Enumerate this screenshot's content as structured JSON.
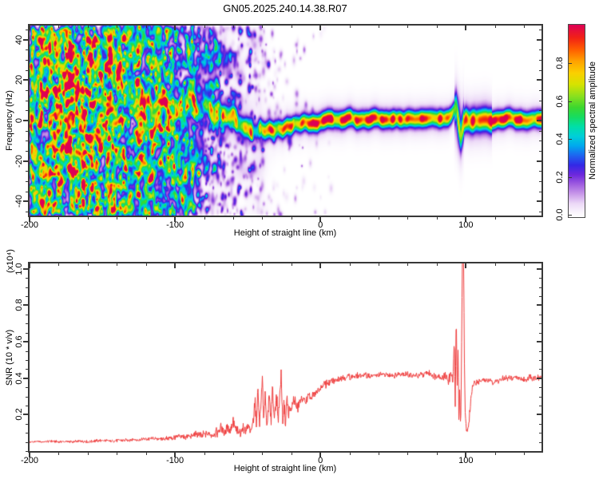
{
  "title": "GN05.2025.240.14.38.R07",
  "chart_data": [
    {
      "type": "heatmap",
      "title": "GN05.2025.240.14.38.R07",
      "xlabel": "Height of straight line (km)",
      "ylabel": "Frequency (Hz)",
      "xlim": [
        -200,
        152
      ],
      "ylim": [
        -47,
        47
      ],
      "xticks": [
        -200,
        -100,
        0,
        100
      ],
      "xtick_labels": [
        "-200",
        "-100",
        "0",
        "100"
      ],
      "yticks": [
        40,
        20,
        0,
        -20,
        -40
      ],
      "ytick_labels": [
        "40",
        "20",
        "0",
        "-20",
        "-40"
      ],
      "minor_x_step": 20,
      "minor_y_step": 5,
      "grid": false,
      "colorbar": {
        "label": "Normalized spectral amplitude",
        "tick_values": [
          0.0,
          0.2,
          0.4,
          0.6,
          0.8
        ],
        "tick_labels": [
          "0.0",
          "0.2",
          "0.4",
          "0.6",
          "0.8"
        ],
        "range": [
          0,
          1
        ]
      },
      "colormap": [
        [
          0.0,
          "#ffffff"
        ],
        [
          0.03,
          "#f8f2fc"
        ],
        [
          0.07,
          "#ecd9f7"
        ],
        [
          0.12,
          "#c99ae9"
        ],
        [
          0.17,
          "#a05ee0"
        ],
        [
          0.22,
          "#6e28dc"
        ],
        [
          0.27,
          "#3328e6"
        ],
        [
          0.32,
          "#1e64f0"
        ],
        [
          0.37,
          "#00a8ee"
        ],
        [
          0.42,
          "#00cfd8"
        ],
        [
          0.47,
          "#00dfa8"
        ],
        [
          0.52,
          "#16dc60"
        ],
        [
          0.57,
          "#3cd72e"
        ],
        [
          0.63,
          "#8ce01e"
        ],
        [
          0.69,
          "#d6e300"
        ],
        [
          0.75,
          "#fbcf00"
        ],
        [
          0.81,
          "#ffa200"
        ],
        [
          0.87,
          "#ff5f00"
        ],
        [
          0.93,
          "#f22314"
        ],
        [
          1.0,
          "#dd0055"
        ]
      ],
      "noise": {
        "x_range": [
          -200,
          8
        ],
        "full_until": -125,
        "fade_to": -30,
        "count": 9000,
        "wash_count": 300,
        "seed": 7
      },
      "spike": {
        "x": 95,
        "center": -1,
        "sigma": 9.5,
        "amplitude": 0.17
      },
      "ridge": [
        [
          -135,
          11,
          0.18
        ],
        [
          -131,
          9,
          0.2
        ],
        [
          -127,
          11,
          0.22
        ],
        [
          -123,
          8,
          0.24
        ],
        [
          -119,
          10,
          0.26
        ],
        [
          -115,
          8,
          0.28
        ],
        [
          -111,
          9.5,
          0.3
        ],
        [
          -107,
          7,
          0.33
        ],
        [
          -103,
          8.5,
          0.36
        ],
        [
          -99,
          6.5,
          0.38
        ],
        [
          -95,
          8,
          0.4
        ],
        [
          -91,
          6,
          0.42
        ],
        [
          -87,
          7,
          0.44
        ],
        [
          -83,
          5,
          0.46
        ],
        [
          -79,
          6.5,
          0.48
        ],
        [
          -75,
          4.5,
          0.5
        ],
        [
          -71,
          5.5,
          0.52
        ],
        [
          -67,
          3.5,
          0.54
        ],
        [
          -63,
          2,
          0.56
        ],
        [
          -59,
          0.5,
          0.58
        ],
        [
          -55,
          -1.5,
          0.58
        ],
        [
          -51,
          -3,
          0.6
        ],
        [
          -47,
          -5,
          0.62
        ],
        [
          -44,
          -6,
          0.64
        ],
        [
          -41,
          -4.5,
          0.66
        ],
        [
          -38,
          -5.5,
          0.68
        ],
        [
          -35,
          -4,
          0.7
        ],
        [
          -32,
          -5,
          0.72
        ],
        [
          -29,
          -3,
          0.75
        ],
        [
          -26,
          -4,
          0.78
        ],
        [
          -23,
          -2,
          0.8
        ],
        [
          -20,
          -2.5,
          0.82
        ],
        [
          -17,
          -1,
          0.84
        ],
        [
          -14,
          -1.8,
          0.86
        ],
        [
          -11,
          -0.8,
          0.88
        ],
        [
          -8,
          -1.5,
          0.88
        ],
        [
          -5,
          -0.5,
          0.9
        ],
        [
          -2,
          -1,
          0.9
        ],
        [
          1,
          0,
          0.92
        ],
        [
          5,
          0.8,
          0.9
        ],
        [
          9,
          0.2,
          0.92
        ],
        [
          13,
          1,
          0.93
        ],
        [
          17,
          0.5,
          0.9
        ],
        [
          21,
          1,
          0.93
        ],
        [
          25,
          0.6,
          0.92
        ],
        [
          29,
          1.1,
          0.9
        ],
        [
          33,
          0.5,
          0.93
        ],
        [
          37,
          1,
          0.92
        ],
        [
          41,
          0.6,
          0.9
        ],
        [
          45,
          1.1,
          0.93
        ],
        [
          49,
          0.5,
          0.92
        ],
        [
          53,
          1,
          0.9
        ],
        [
          57,
          0.7,
          0.93
        ],
        [
          61,
          1.1,
          0.92
        ],
        [
          65,
          0.5,
          0.9
        ],
        [
          69,
          1,
          0.93
        ],
        [
          73,
          0.7,
          0.92
        ],
        [
          77,
          1.1,
          0.9
        ],
        [
          81,
          0.6,
          0.92
        ],
        [
          85,
          1,
          0.9
        ],
        [
          88,
          1.5,
          0.85
        ],
        [
          90,
          3,
          0.75
        ],
        [
          92,
          6,
          0.55
        ],
        [
          93.5,
          7.5,
          0.5
        ],
        [
          94.5,
          2,
          0.6
        ],
        [
          95.5,
          -4,
          0.6
        ],
        [
          96.5,
          -8.5,
          0.55
        ],
        [
          97.5,
          -5,
          0.65
        ],
        [
          98.5,
          -1,
          0.75
        ],
        [
          100,
          0.5,
          0.82
        ],
        [
          103,
          0,
          0.88
        ],
        [
          106,
          0.8,
          0.9
        ],
        [
          110,
          0.3,
          0.9
        ],
        [
          114,
          0.9,
          0.91
        ],
        [
          118,
          0.4,
          0.9
        ],
        [
          122,
          1,
          0.92
        ],
        [
          126,
          0.5,
          0.9
        ],
        [
          130,
          1,
          0.92
        ],
        [
          134,
          0.6,
          0.9
        ],
        [
          138,
          1,
          0.93
        ],
        [
          142,
          0.5,
          0.92
        ],
        [
          146,
          1,
          0.9
        ],
        [
          150,
          0.8,
          0.92
        ],
        [
          152,
          0.8,
          0.9
        ]
      ]
    },
    {
      "type": "line",
      "xlabel": "Height of straight line (km)",
      "ylabel": "SNR (10 * v/v)",
      "y_scale_label": "(x10⁴)",
      "color": "#ee3b3b",
      "xlim": [
        -200,
        152
      ],
      "ylim": [
        0,
        1.03
      ],
      "xticks": [
        -200,
        -100,
        0,
        100
      ],
      "xtick_labels": [
        "-200",
        "-100",
        "0",
        "100"
      ],
      "yticks": [
        0.2,
        0.4,
        0.6,
        0.8,
        1.0
      ],
      "ytick_labels": [
        "0.2",
        "0.4",
        "0.6",
        "0.8",
        "1.0"
      ],
      "minor_x_step": 20,
      "minor_y_step": 0.05,
      "grid": false,
      "points": [
        [
          -200,
          0.048,
          0.008
        ],
        [
          -195,
          0.052,
          0.008
        ],
        [
          -190,
          0.05,
          0.009
        ],
        [
          -185,
          0.055,
          0.009
        ],
        [
          -180,
          0.05,
          0.008
        ],
        [
          -175,
          0.053,
          0.008
        ],
        [
          -170,
          0.05,
          0.009
        ],
        [
          -165,
          0.055,
          0.01
        ],
        [
          -160,
          0.052,
          0.009
        ],
        [
          -155,
          0.055,
          0.01
        ],
        [
          -150,
          0.058,
          0.01
        ],
        [
          -145,
          0.054,
          0.01
        ],
        [
          -140,
          0.056,
          0.011
        ],
        [
          -135,
          0.06,
          0.011
        ],
        [
          -130,
          0.062,
          0.012
        ],
        [
          -125,
          0.06,
          0.012
        ],
        [
          -120,
          0.065,
          0.013
        ],
        [
          -115,
          0.068,
          0.014
        ],
        [
          -110,
          0.066,
          0.014
        ],
        [
          -105,
          0.07,
          0.016
        ],
        [
          -100,
          0.075,
          0.018
        ],
        [
          -96,
          0.08,
          0.018
        ],
        [
          -92,
          0.078,
          0.02
        ],
        [
          -88,
          0.085,
          0.022
        ],
        [
          -84,
          0.09,
          0.026
        ],
        [
          -80,
          0.086,
          0.026
        ],
        [
          -77,
          0.095,
          0.028
        ],
        [
          -74,
          0.09,
          0.028
        ],
        [
          -71,
          0.105,
          0.032
        ],
        [
          -68,
          0.125,
          0.036
        ],
        [
          -66,
          0.095,
          0.03
        ],
        [
          -64,
          0.14,
          0.04
        ],
        [
          -62,
          0.105,
          0.034
        ],
        [
          -60,
          0.15,
          0.045
        ],
        [
          -58,
          0.115,
          0.038
        ],
        [
          -56,
          0.098,
          0.034
        ],
        [
          -54,
          0.125,
          0.038
        ],
        [
          -52,
          0.108,
          0.036
        ],
        [
          -50,
          0.135,
          0.04
        ],
        [
          -48,
          0.115,
          0.038
        ],
        [
          -46,
          0.155,
          0.045
        ],
        [
          -45,
          0.29,
          0.05
        ],
        [
          -44,
          0.135,
          0.045
        ],
        [
          -43,
          0.33,
          0.05
        ],
        [
          -42,
          0.15,
          0.045
        ],
        [
          -41,
          0.24,
          0.05
        ],
        [
          -40,
          0.42,
          0.045
        ],
        [
          -39,
          0.155,
          0.045
        ],
        [
          -38,
          0.34,
          0.05
        ],
        [
          -37,
          0.14,
          0.045
        ],
        [
          -36,
          0.24,
          0.05
        ],
        [
          -35,
          0.3,
          0.05
        ],
        [
          -34,
          0.155,
          0.045
        ],
        [
          -33,
          0.37,
          0.05
        ],
        [
          -32,
          0.175,
          0.045
        ],
        [
          -31,
          0.255,
          0.05
        ],
        [
          -30,
          0.285,
          0.05
        ],
        [
          -29,
          0.165,
          0.045
        ],
        [
          -28,
          0.32,
          0.05
        ],
        [
          -27,
          0.42,
          0.045
        ],
        [
          -26,
          0.175,
          0.045
        ],
        [
          -25,
          0.26,
          0.05
        ],
        [
          -24,
          0.155,
          0.045
        ],
        [
          -23,
          0.3,
          0.05
        ],
        [
          -22,
          0.195,
          0.045
        ],
        [
          -21,
          0.25,
          0.045
        ],
        [
          -20,
          0.215,
          0.042
        ],
        [
          -18,
          0.29,
          0.042
        ],
        [
          -16,
          0.235,
          0.04
        ],
        [
          -14,
          0.265,
          0.04
        ],
        [
          -12,
          0.29,
          0.036
        ],
        [
          -10,
          0.275,
          0.036
        ],
        [
          -8,
          0.3,
          0.034
        ],
        [
          -6,
          0.29,
          0.032
        ],
        [
          -4,
          0.31,
          0.03
        ],
        [
          -2,
          0.33,
          0.028
        ],
        [
          0,
          0.345,
          0.026
        ],
        [
          3,
          0.365,
          0.026
        ],
        [
          6,
          0.375,
          0.024
        ],
        [
          10,
          0.39,
          0.023
        ],
        [
          14,
          0.4,
          0.022
        ],
        [
          18,
          0.405,
          0.022
        ],
        [
          22,
          0.41,
          0.02
        ],
        [
          26,
          0.415,
          0.02
        ],
        [
          30,
          0.415,
          0.02
        ],
        [
          35,
          0.41,
          0.02
        ],
        [
          40,
          0.415,
          0.02
        ],
        [
          45,
          0.42,
          0.021
        ],
        [
          50,
          0.415,
          0.02
        ],
        [
          55,
          0.425,
          0.021
        ],
        [
          60,
          0.42,
          0.02
        ],
        [
          65,
          0.41,
          0.02
        ],
        [
          70,
          0.42,
          0.021
        ],
        [
          75,
          0.43,
          0.023
        ],
        [
          78,
          0.41,
          0.023
        ],
        [
          81,
          0.415,
          0.021
        ],
        [
          84,
          0.4,
          0.021
        ],
        [
          86,
          0.415,
          0.026
        ],
        [
          88,
          0.385,
          0.028
        ],
        [
          90,
          0.43,
          0.035
        ],
        [
          91,
          0.36,
          0.04
        ],
        [
          92,
          0.6,
          0.04
        ],
        [
          92.7,
          0.26,
          0.038
        ],
        [
          93.4,
          0.77,
          0.035
        ],
        [
          94,
          0.31,
          0.035
        ],
        [
          94.6,
          0.58,
          0.035
        ],
        [
          95.2,
          0.16,
          0.03
        ],
        [
          95.8,
          0.34,
          0.028
        ],
        [
          96.4,
          0.12,
          0.022
        ],
        [
          97,
          0.5,
          0.026
        ],
        [
          97.6,
          1.06,
          0.02
        ],
        [
          98.4,
          1.06,
          0.02
        ],
        [
          99,
          0.48,
          0.032
        ],
        [
          99.6,
          0.21,
          0.028
        ],
        [
          100.2,
          0.13,
          0.024
        ],
        [
          101,
          0.105,
          0.02
        ],
        [
          102,
          0.15,
          0.026
        ],
        [
          103,
          0.24,
          0.028
        ],
        [
          104,
          0.32,
          0.026
        ],
        [
          105,
          0.365,
          0.024
        ],
        [
          108,
          0.38,
          0.022
        ],
        [
          112,
          0.39,
          0.02
        ],
        [
          116,
          0.385,
          0.02
        ],
        [
          120,
          0.38,
          0.02
        ],
        [
          124,
          0.39,
          0.021
        ],
        [
          128,
          0.4,
          0.021
        ],
        [
          132,
          0.405,
          0.02
        ],
        [
          136,
          0.4,
          0.02
        ],
        [
          140,
          0.39,
          0.02
        ],
        [
          144,
          0.405,
          0.021
        ],
        [
          148,
          0.4,
          0.02
        ],
        [
          152,
          0.4,
          0.02
        ]
      ]
    }
  ]
}
